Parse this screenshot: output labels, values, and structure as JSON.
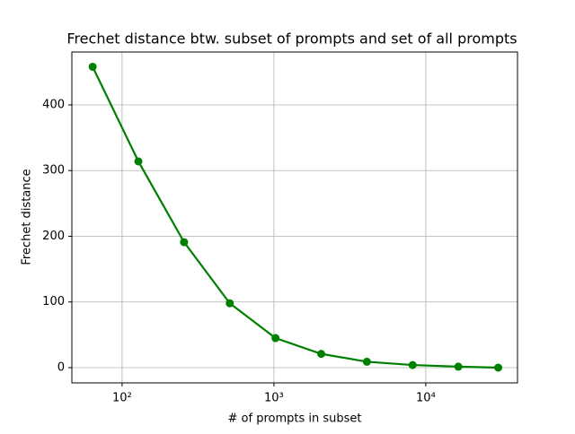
{
  "chart_data": {
    "type": "line",
    "title": "Frechet distance btw. subset of prompts and set of all prompts",
    "xlabel": "# of prompts in subset",
    "ylabel": "Frechet distance",
    "x": [
      64,
      128,
      256,
      512,
      1024,
      2048,
      4096,
      8192,
      16384,
      30000
    ],
    "series": [
      {
        "name": "Frechet distance",
        "color": "#008000",
        "values": [
          458,
          314,
          191,
          98,
          45,
          21,
          9,
          4,
          1.5,
          0
        ]
      }
    ],
    "xscale": "log",
    "xlim": [
      46.7,
      40180
    ],
    "xticks": [
      {
        "value": 100,
        "label": "10²"
      },
      {
        "value": 1000,
        "label": "10³"
      },
      {
        "value": 10000,
        "label": "10⁴"
      }
    ],
    "ylim": [
      -23.2,
      480.5
    ],
    "yticks": [
      0,
      100,
      200,
      300,
      400
    ],
    "grid": true
  }
}
